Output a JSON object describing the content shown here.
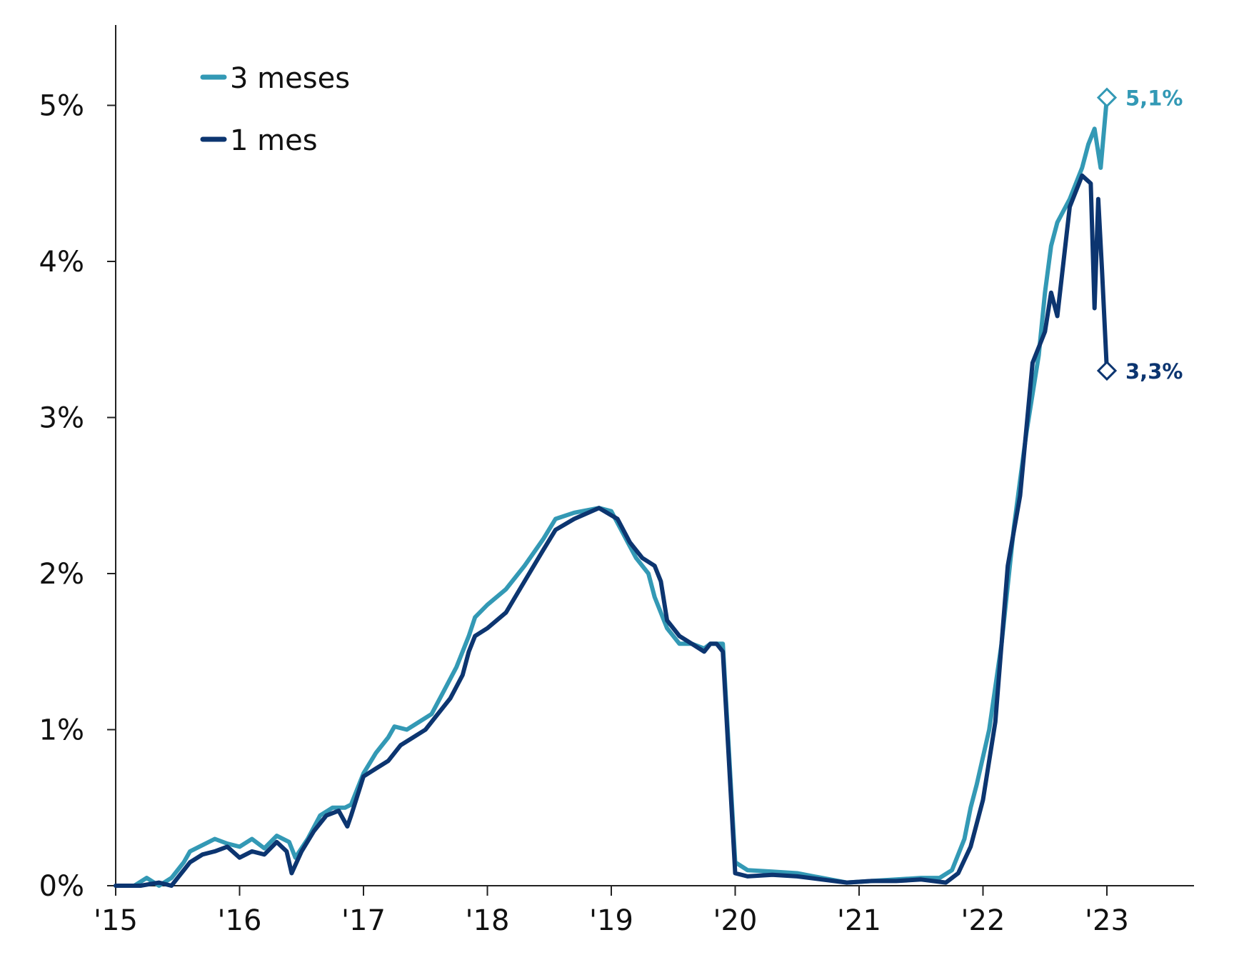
{
  "chart_data": {
    "type": "line",
    "title": "",
    "xlabel": "",
    "ylabel": "",
    "xlim": [
      2015.0,
      2023.7
    ],
    "ylim": [
      0,
      5.5
    ],
    "grid": false,
    "legend_position": "top-left",
    "x_ticks": [
      2015,
      2016,
      2017,
      2018,
      2019,
      2020,
      2021,
      2022,
      2023
    ],
    "x_tick_labels": [
      "'15",
      "'16",
      "'17",
      "'18",
      "'19",
      "'20",
      "'21",
      "'22",
      "'23"
    ],
    "y_ticks": [
      0,
      1,
      2,
      3,
      4,
      5
    ],
    "y_tick_labels": [
      "0%",
      "1%",
      "2%",
      "3%",
      "4%",
      "5%"
    ],
    "series": [
      {
        "name": "3 meses",
        "color": "#3399b5",
        "end_label": "5,1%",
        "end_marker": "diamond-open",
        "x": [
          2015.0,
          2015.15,
          2015.25,
          2015.35,
          2015.45,
          2015.55,
          2015.6,
          2015.7,
          2015.8,
          2015.9,
          2016.0,
          2016.1,
          2016.2,
          2016.3,
          2016.4,
          2016.45,
          2016.55,
          2016.65,
          2016.75,
          2016.85,
          2016.9,
          2017.0,
          2017.1,
          2017.2,
          2017.25,
          2017.35,
          2017.45,
          2017.55,
          2017.65,
          2017.75,
          2017.85,
          2017.9,
          2018.0,
          2018.15,
          2018.3,
          2018.45,
          2018.55,
          2018.7,
          2018.9,
          2019.0,
          2019.1,
          2019.2,
          2019.3,
          2019.35,
          2019.45,
          2019.55,
          2019.65,
          2019.75,
          2019.8,
          2019.85,
          2019.9,
          2020.0,
          2020.1,
          2020.3,
          2020.5,
          2020.7,
          2020.9,
          2021.1,
          2021.3,
          2021.5,
          2021.65,
          2021.75,
          2021.85,
          2021.9,
          2021.95,
          2022.05,
          2022.15,
          2022.25,
          2022.35,
          2022.45,
          2022.5,
          2022.55,
          2022.6,
          2022.7,
          2022.8,
          2022.85,
          2022.9,
          2022.95,
          2023.0
        ],
        "values": [
          0.0,
          0.0,
          0.05,
          0.0,
          0.05,
          0.15,
          0.22,
          0.26,
          0.3,
          0.27,
          0.25,
          0.3,
          0.24,
          0.32,
          0.28,
          0.18,
          0.3,
          0.45,
          0.5,
          0.5,
          0.52,
          0.72,
          0.85,
          0.95,
          1.02,
          1.0,
          1.05,
          1.1,
          1.25,
          1.4,
          1.6,
          1.72,
          1.8,
          1.9,
          2.05,
          2.22,
          2.35,
          2.39,
          2.42,
          2.4,
          2.25,
          2.1,
          2.0,
          1.85,
          1.65,
          1.55,
          1.55,
          1.52,
          1.55,
          1.55,
          1.55,
          0.15,
          0.1,
          0.09,
          0.08,
          0.05,
          0.02,
          0.03,
          0.04,
          0.05,
          0.05,
          0.1,
          0.3,
          0.5,
          0.65,
          1.0,
          1.55,
          2.3,
          2.9,
          3.4,
          3.8,
          4.1,
          4.25,
          4.4,
          4.6,
          4.75,
          4.85,
          4.6,
          5.05
        ]
      },
      {
        "name": "1 mes",
        "color": "#0c3570",
        "end_label": "3,3%",
        "end_marker": "diamond-open",
        "x": [
          2015.0,
          2015.2,
          2015.35,
          2015.45,
          2015.55,
          2015.6,
          2015.7,
          2015.8,
          2015.9,
          2016.0,
          2016.1,
          2016.2,
          2016.3,
          2016.38,
          2016.42,
          2016.5,
          2016.6,
          2016.7,
          2016.8,
          2016.87,
          2016.9,
          2017.0,
          2017.1,
          2017.2,
          2017.3,
          2017.4,
          2017.5,
          2017.6,
          2017.7,
          2017.8,
          2017.85,
          2017.9,
          2018.0,
          2018.15,
          2018.3,
          2018.45,
          2018.55,
          2018.7,
          2018.9,
          2019.05,
          2019.15,
          2019.25,
          2019.35,
          2019.4,
          2019.45,
          2019.55,
          2019.65,
          2019.75,
          2019.8,
          2019.85,
          2019.9,
          2020.0,
          2020.1,
          2020.3,
          2020.5,
          2020.7,
          2020.9,
          2021.1,
          2021.3,
          2021.5,
          2021.7,
          2021.8,
          2021.9,
          2022.0,
          2022.1,
          2022.2,
          2022.3,
          2022.4,
          2022.5,
          2022.55,
          2022.6,
          2022.7,
          2022.8,
          2022.87,
          2022.9,
          2022.93,
          2022.96,
          2023.0
        ],
        "values": [
          0.0,
          0.0,
          0.02,
          0.0,
          0.1,
          0.15,
          0.2,
          0.22,
          0.25,
          0.18,
          0.22,
          0.2,
          0.28,
          0.22,
          0.08,
          0.22,
          0.35,
          0.45,
          0.48,
          0.38,
          0.45,
          0.7,
          0.75,
          0.8,
          0.9,
          0.95,
          1.0,
          1.1,
          1.2,
          1.35,
          1.5,
          1.6,
          1.65,
          1.75,
          1.95,
          2.15,
          2.28,
          2.35,
          2.42,
          2.35,
          2.2,
          2.1,
          2.05,
          1.95,
          1.7,
          1.6,
          1.55,
          1.5,
          1.55,
          1.55,
          1.5,
          0.08,
          0.06,
          0.07,
          0.06,
          0.04,
          0.02,
          0.03,
          0.03,
          0.04,
          0.02,
          0.08,
          0.25,
          0.55,
          1.05,
          2.05,
          2.5,
          3.35,
          3.55,
          3.8,
          3.65,
          4.35,
          4.55,
          4.5,
          3.7,
          4.4,
          3.95,
          3.3
        ]
      }
    ]
  }
}
